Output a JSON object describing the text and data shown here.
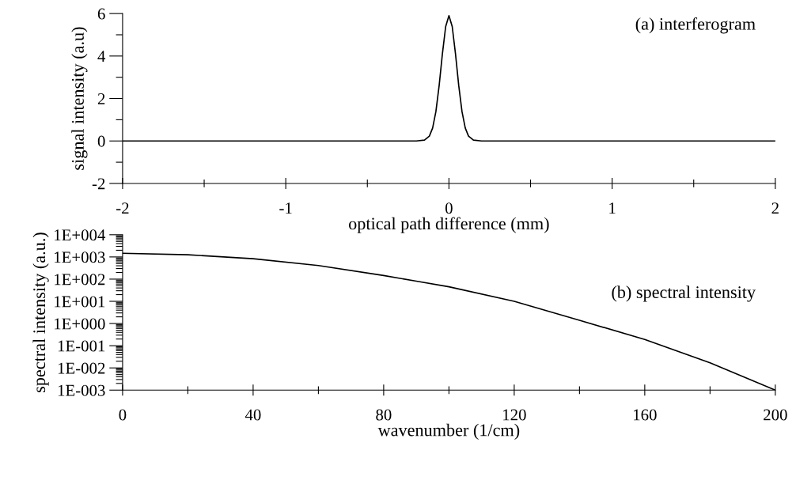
{
  "chart_data": [
    {
      "type": "line",
      "xlabel": "optical path difference (mm)",
      "ylabel": "signal intensity (a.u)",
      "annotations": [
        "(a) interferogram"
      ],
      "x": [
        -2,
        -0.2,
        -0.15,
        -0.12,
        -0.1,
        -0.08,
        -0.06,
        -0.04,
        -0.02,
        0,
        0.02,
        0.04,
        0.06,
        0.08,
        0.1,
        0.12,
        0.15,
        0.2,
        2
      ],
      "series": [
        {
          "color": "#000000",
          "values": [
            0,
            0,
            0.04,
            0.23,
            0.61,
            1.38,
            2.61,
            4.11,
            5.39,
            5.9,
            5.39,
            4.11,
            2.61,
            1.38,
            0.61,
            0.23,
            0.04,
            0,
            0
          ]
        }
      ],
      "xlim": [
        -2,
        2
      ],
      "xticks": [
        -2,
        {
          "value": -1.5,
          "label": null
        },
        -1,
        {
          "value": -0.5,
          "label": null
        },
        0,
        {
          "value": 0.5,
          "label": null
        },
        1,
        {
          "value": 1.5,
          "label": null
        },
        2
      ],
      "ylim": [
        -2,
        6
      ],
      "yticks": [
        -2,
        {
          "value": -1,
          "label": null
        },
        0,
        {
          "value": 1,
          "label": null
        },
        2,
        {
          "value": 3,
          "label": null
        },
        4,
        {
          "value": 5,
          "label": null
        },
        6
      ],
      "grid": false,
      "legend": false,
      "marker": "none",
      "line_style": "solid"
    },
    {
      "type": "line",
      "xlabel": "wavenumber (1/cm)",
      "ylabel": "spectral intensity (a.u.)",
      "annotations": [
        "(b) spectral intensity"
      ],
      "x": [
        0,
        20,
        40,
        60,
        80,
        90,
        100,
        120,
        140,
        160,
        180,
        200
      ],
      "series": [
        {
          "color": "#000000",
          "values": [
            1460,
            1260,
            830,
            410,
            145,
            81,
            45,
            10,
            1.4,
            0.19,
            0.017,
            0.001
          ]
        }
      ],
      "log": "y",
      "xlim": [
        0,
        200
      ],
      "xticks": [
        0,
        {
          "value": 20,
          "label": null
        },
        40,
        {
          "value": 60,
          "label": null
        },
        80,
        {
          "value": 100,
          "label": null
        },
        120,
        {
          "value": 140,
          "label": null
        },
        160,
        {
          "value": 180,
          "label": null
        },
        200
      ],
      "ylim": [
        0.001,
        10000
      ],
      "yticks": [
        {
          "value": 0.001,
          "label": "1E-003"
        },
        {
          "value": 0.01,
          "label": "1E-002"
        },
        {
          "value": 0.1,
          "label": "1E-001"
        },
        {
          "value": 1,
          "label": "1E+000"
        },
        {
          "value": 10,
          "label": "1E+001"
        },
        {
          "value": 100,
          "label": "1E+002"
        },
        {
          "value": 1000,
          "label": "1E+003"
        },
        {
          "value": 10000,
          "label": "1E+004"
        }
      ],
      "grid": false,
      "legend": false,
      "marker": "none",
      "line_style": "solid"
    }
  ]
}
